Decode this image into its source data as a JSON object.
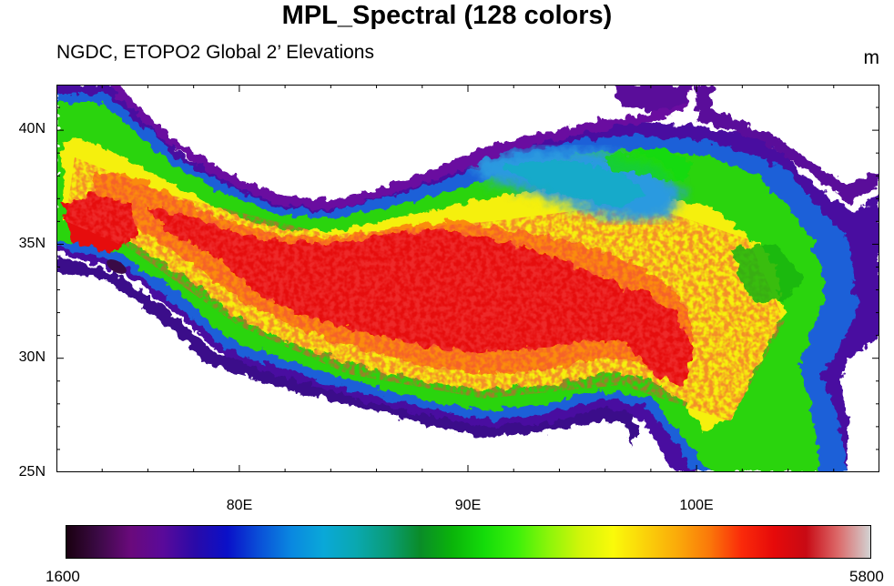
{
  "title": "MPL_Spectral (128 colors)",
  "subtitle": "NGDC, ETOPO2 Global 2’ Elevations",
  "units": "m",
  "map": {
    "lon_range": [
      72,
      108
    ],
    "lat_range": [
      25,
      42
    ],
    "lon_ticks": [
      {
        "value": 80,
        "label": "80E"
      },
      {
        "value": 90,
        "label": "90E"
      },
      {
        "value": 100,
        "label": "100E"
      }
    ],
    "lat_ticks": [
      {
        "value": 25,
        "label": "25N"
      },
      {
        "value": 30,
        "label": "30N"
      },
      {
        "value": 35,
        "label": "35N"
      },
      {
        "value": 40,
        "label": "40N"
      }
    ],
    "region": "Tibetan Plateau elevation, colored with MPL_Spectral palette"
  },
  "colorbar": {
    "min_label": "1600",
    "max_label": "5800",
    "min": 1600,
    "max": 5800,
    "colors": [
      "#1a0010",
      "#3c0a46",
      "#6a0a7c",
      "#5a0a9a",
      "#2a0aa8",
      "#0a10c8",
      "#0a50d8",
      "#0a88e0",
      "#0aa8d8",
      "#0aa8b0",
      "#0a9c78",
      "#0a8c28",
      "#0ab40a",
      "#14dc0a",
      "#3cf00a",
      "#8cf50a",
      "#d2f50a",
      "#fafa0a",
      "#fad20a",
      "#faaa0a",
      "#fa780a",
      "#fa2a0a",
      "#e60a0a",
      "#c80a14",
      "#dc6a6a",
      "#d2d2d2"
    ],
    "n_colors": 128
  }
}
